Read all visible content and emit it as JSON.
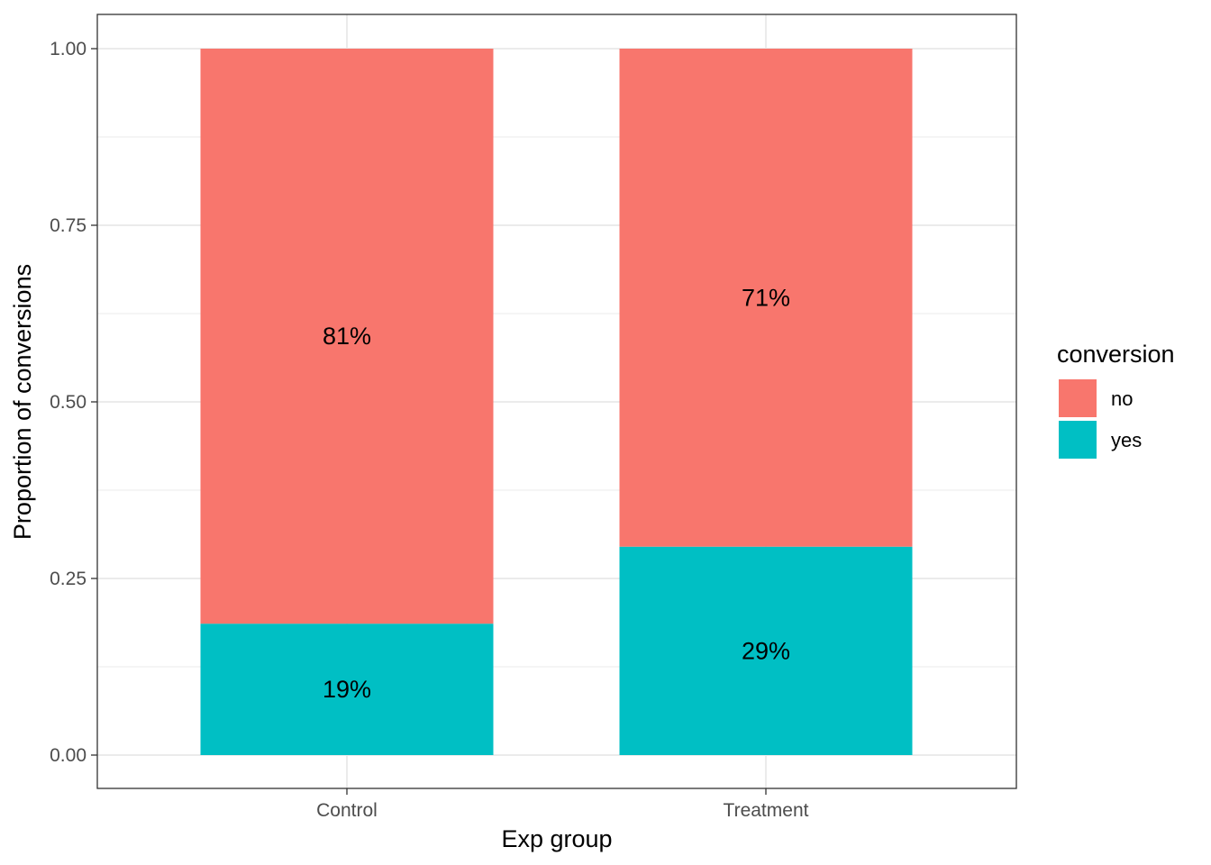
{
  "chart_data": {
    "type": "bar",
    "stacked": true,
    "categories": [
      "Control",
      "Treatment"
    ],
    "series": [
      {
        "name": "yes",
        "values": [
          0.186,
          0.295
        ],
        "labels": [
          "19%",
          "29%"
        ],
        "color": "#00BFC4"
      },
      {
        "name": "no",
        "values": [
          0.814,
          0.705
        ],
        "labels": [
          "81%",
          "71%"
        ],
        "color": "#F8766D"
      }
    ],
    "xlabel": "Exp group",
    "ylabel": "Proportion of conversions",
    "ylim": [
      0,
      1
    ],
    "yticks": [
      "0.00",
      "0.25",
      "0.50",
      "0.75",
      "1.00"
    ],
    "ytick_values": [
      0,
      0.25,
      0.5,
      0.75,
      1
    ],
    "legend": {
      "title": "conversion",
      "position": "right",
      "entries": [
        {
          "label": "no",
          "color": "#F8766D"
        },
        {
          "label": "yes",
          "color": "#00BFC4"
        }
      ]
    },
    "grid": true
  }
}
